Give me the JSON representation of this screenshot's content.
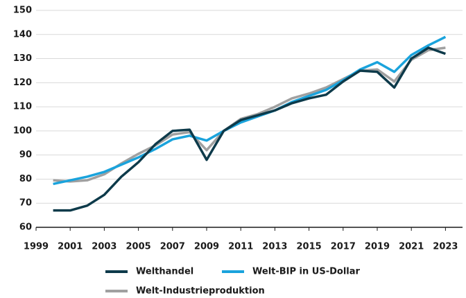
{
  "chart_data": {
    "type": "line",
    "x": [
      2000,
      2001,
      2002,
      2003,
      2004,
      2005,
      2006,
      2007,
      2008,
      2009,
      2010,
      2011,
      2012,
      2013,
      2014,
      2015,
      2016,
      2017,
      2018,
      2019,
      2020,
      2021,
      2022,
      2023
    ],
    "series": [
      {
        "name": "Welthandel",
        "color": "#0d3a4a",
        "values": [
          67,
          67,
          69,
          73.5,
          81,
          87,
          94.5,
          100,
          100.5,
          88,
          100,
          104.5,
          106.5,
          108.5,
          111.5,
          113.5,
          115,
          120.5,
          125,
          124.5,
          118,
          130,
          134.5,
          132
        ]
      },
      {
        "name": "Welt-BIP in US-Dollar",
        "color": "#1aa3dc",
        "values": [
          78,
          79.5,
          81,
          83,
          86,
          89,
          92.5,
          96.5,
          98,
          96,
          100,
          103.5,
          106,
          108.5,
          112,
          114.5,
          117,
          121,
          125.5,
          128.5,
          124.5,
          131.5,
          135.5,
          139
        ]
      },
      {
        "name": "Welt-Industrieproduktion",
        "color": "#a0a0a0",
        "values": [
          79.5,
          79,
          79.5,
          82,
          86.5,
          90.5,
          94,
          98.5,
          99.5,
          92,
          100,
          105,
          107,
          110,
          113.5,
          115.5,
          118,
          121.5,
          125,
          125.5,
          120.5,
          129.5,
          133.5,
          134.5
        ]
      }
    ],
    "xlim": [
      1999,
      2024
    ],
    "xticks": [
      1999,
      2001,
      2003,
      2005,
      2007,
      2009,
      2011,
      2013,
      2015,
      2017,
      2019,
      2021,
      2023
    ],
    "ylim": [
      60,
      150
    ],
    "yticks": [
      60,
      70,
      80,
      90,
      100,
      110,
      120,
      130,
      140,
      150
    ],
    "grid": true
  }
}
